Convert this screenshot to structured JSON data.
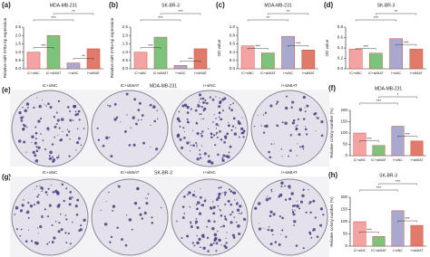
{
  "chart_data": [
    {
      "type": "bar",
      "panel_label": "(a)",
      "title": "MDA-MB-231",
      "ylabel": "Relative miR-378a-5p expression",
      "categories": [
        "IC+siNC",
        "IC+siMIAT",
        "I+siNC",
        "I+siMIAT"
      ],
      "values": [
        1.0,
        2.0,
        0.35,
        1.2
      ],
      "colors": [
        "#f4a3a3",
        "#7cc47c",
        "#a9a9cf",
        "#e07b6a"
      ],
      "ylim": [
        0,
        2.5
      ],
      "yticks": [
        {
          "value": 0,
          "label": "0.0"
        },
        {
          "value": 0.5,
          "label": "0.5"
        },
        {
          "value": 1,
          "label": "1.0"
        },
        {
          "value": 1.5,
          "label": "1.5"
        },
        {
          "value": 2,
          "label": "2.0"
        },
        {
          "value": 2.5,
          "label": "2.5"
        }
      ],
      "annotations": [
        "***",
        "**",
        "***",
        "**"
      ]
    },
    {
      "type": "bar",
      "panel_label": "(b)",
      "title": "SK-BR-3",
      "ylabel": "Relative miR-378a-5p expression",
      "categories": [
        "IC+siNC",
        "IC+siMIAT",
        "I+siNC",
        "I+siMIAT"
      ],
      "values": [
        1.0,
        1.9,
        0.2,
        1.2
      ],
      "colors": [
        "#f4a3a3",
        "#7cc47c",
        "#a9a9cf",
        "#e07b6a"
      ],
      "ylim": [
        0,
        2.5
      ],
      "yticks": [
        {
          "value": 0,
          "label": "0.0"
        },
        {
          "value": 0.5,
          "label": "0.5"
        },
        {
          "value": 1,
          "label": "1.0"
        },
        {
          "value": 1.5,
          "label": "1.5"
        },
        {
          "value": 2,
          "label": "2.0"
        },
        {
          "value": 2.5,
          "label": "2.5"
        }
      ],
      "annotations": [
        "***",
        "***",
        "***",
        "***"
      ]
    },
    {
      "type": "bar",
      "panel_label": "(c)",
      "title": "MDA-MB-231",
      "ylabel": "OD value",
      "categories": [
        "IC+siNC",
        "IC+siMIAT",
        "I+siNC",
        "I+siMIAT"
      ],
      "values": [
        0.55,
        0.38,
        0.78,
        0.45
      ],
      "colors": [
        "#f4a3a3",
        "#7cc47c",
        "#a9a9cf",
        "#e07b6a"
      ],
      "ylim": [
        0,
        1.0
      ],
      "yticks": [
        {
          "value": 0,
          "label": "0.0"
        },
        {
          "value": 0.2,
          "label": "0.2"
        },
        {
          "value": 0.4,
          "label": "0.4"
        },
        {
          "value": 0.6,
          "label": "0.6"
        },
        {
          "value": 0.8,
          "label": "0.8"
        },
        {
          "value": 1,
          "label": "1.0"
        }
      ],
      "annotations": [
        "***",
        "***",
        "**",
        "**"
      ]
    },
    {
      "type": "bar",
      "panel_label": "(d)",
      "title": "SK-BR-3",
      "ylabel": "OD value",
      "categories": [
        "IC+siNC",
        "IC+siMIAT",
        "I+siNC",
        "I+siMIAT"
      ],
      "values": [
        0.38,
        0.3,
        0.58,
        0.38
      ],
      "colors": [
        "#f4a3a3",
        "#7cc47c",
        "#a9a9cf",
        "#e07b6a"
      ],
      "ylim": [
        0,
        0.8
      ],
      "yticks": [
        {
          "value": 0,
          "label": "0.0"
        },
        {
          "value": 0.2,
          "label": "0.2"
        },
        {
          "value": 0.4,
          "label": "0.4"
        },
        {
          "value": 0.6,
          "label": "0.6"
        },
        {
          "value": 0.8,
          "label": "0.8"
        }
      ],
      "annotations": [
        "***",
        "***",
        "***",
        "**"
      ]
    },
    {
      "type": "bar",
      "panel_label": "(f)",
      "title": "MDA-MB-231",
      "ylabel": "Relative colony number (%)",
      "categories": [
        "IC+siNC",
        "IC+siMIAT",
        "I+siNC",
        "I+siMIAT"
      ],
      "values": [
        100,
        45,
        130,
        65
      ],
      "colors": [
        "#f4a3a3",
        "#7cc47c",
        "#a9a9cf",
        "#e07b6a"
      ],
      "ylim": [
        0,
        200
      ],
      "yticks": [
        0,
        50,
        100,
        150,
        200
      ],
      "annotations": [
        "***",
        "***",
        "***",
        "*"
      ]
    },
    {
      "type": "bar",
      "panel_label": "(h)",
      "title": "SK-BR-3",
      "ylabel": "Relative colony number (%)",
      "categories": [
        "IC+siNC",
        "IC+siMIAT",
        "I+siNC",
        "I+siMIAT"
      ],
      "values": [
        100,
        40,
        145,
        85
      ],
      "colors": [
        "#f4a3a3",
        "#7cc47c",
        "#a9a9cf",
        "#e07b6a"
      ],
      "ylim": [
        0,
        200
      ],
      "yticks": [
        0,
        50,
        100,
        150,
        200
      ],
      "annotations": [
        "***",
        "***",
        "***",
        "***"
      ]
    }
  ],
  "image_panels": [
    {
      "panel_label": "(e)",
      "title": "MDA-MB-231",
      "labels": [
        "IC+siNC",
        "IC+siMIAT",
        "I+siNC",
        "I+siMIAT"
      ]
    },
    {
      "panel_label": "(g)",
      "title": "SK-BR-3",
      "labels": [
        "IC+siNC",
        "IC+siMIAT",
        "I+siNC",
        "I+siMIAT"
      ]
    }
  ]
}
